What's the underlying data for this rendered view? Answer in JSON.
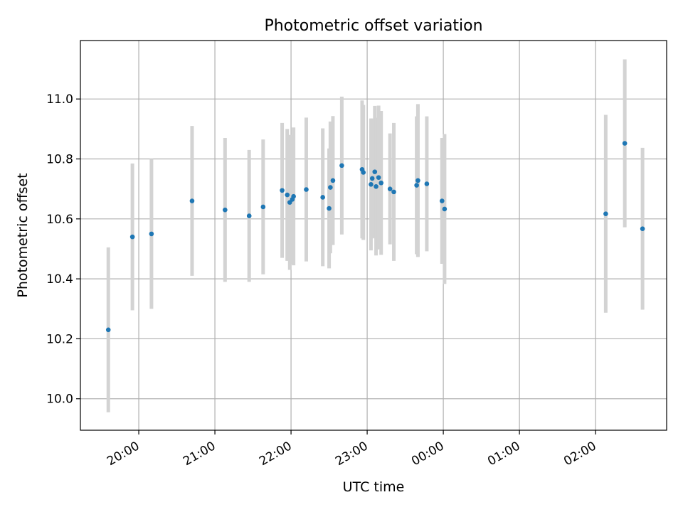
{
  "chart_data": {
    "type": "scatter",
    "title": "Photometric offset variation",
    "xlabel": "UTC time",
    "ylabel": "Photometric offset",
    "x_unit": "UTC hh:mm (values after midnight are the following day)",
    "xlim": [
      "19:14",
      "02:56"
    ],
    "ylim": [
      9.895,
      11.195
    ],
    "grid": true,
    "x_ticks": [
      "20:00",
      "21:00",
      "22:00",
      "23:00",
      "00:00",
      "01:00",
      "02:00"
    ],
    "y_ticks": [
      "10.0",
      "10.2",
      "10.4",
      "10.6",
      "10.8",
      "11.0"
    ],
    "colors": {
      "points": "#1f77b4",
      "errorbars": "#d3d3d3",
      "grid": "#b0b0b0"
    },
    "series": [
      {
        "points": [
          {
            "x": "19:36",
            "y": 10.23,
            "yerr": 0.275
          },
          {
            "x": "19:55",
            "y": 10.54,
            "yerr": 0.245
          },
          {
            "x": "20:10",
            "y": 10.55,
            "yerr": 0.25
          },
          {
            "x": "20:42",
            "y": 10.66,
            "yerr": 0.25
          },
          {
            "x": "21:08",
            "y": 10.63,
            "yerr": 0.24
          },
          {
            "x": "21:27",
            "y": 10.61,
            "yerr": 0.22
          },
          {
            "x": "21:38",
            "y": 10.64,
            "yerr": 0.225
          },
          {
            "x": "21:53",
            "y": 10.695,
            "yerr": 0.225
          },
          {
            "x": "21:57",
            "y": 10.68,
            "yerr": 0.22
          },
          {
            "x": "21:59",
            "y": 10.655,
            "yerr": 0.225
          },
          {
            "x": "22:01",
            "y": 10.665,
            "yerr": 0.215
          },
          {
            "x": "22:02",
            "y": 10.675,
            "yerr": 0.23
          },
          {
            "x": "22:12",
            "y": 10.698,
            "yerr": 0.24
          },
          {
            "x": "22:25",
            "y": 10.672,
            "yerr": 0.23
          },
          {
            "x": "22:30",
            "y": 10.635,
            "yerr": 0.2
          },
          {
            "x": "22:31",
            "y": 10.705,
            "yerr": 0.22
          },
          {
            "x": "22:33",
            "y": 10.728,
            "yerr": 0.215
          },
          {
            "x": "22:40",
            "y": 10.778,
            "yerr": 0.23
          },
          {
            "x": "22:56",
            "y": 10.765,
            "yerr": 0.23
          },
          {
            "x": "22:57",
            "y": 10.755,
            "yerr": 0.225
          },
          {
            "x": "23:03",
            "y": 10.715,
            "yerr": 0.22
          },
          {
            "x": "23:04",
            "y": 10.735,
            "yerr": 0.2
          },
          {
            "x": "23:06",
            "y": 10.757,
            "yerr": 0.22
          },
          {
            "x": "23:07",
            "y": 10.708,
            "yerr": 0.23
          },
          {
            "x": "23:09",
            "y": 10.738,
            "yerr": 0.24
          },
          {
            "x": "23:11",
            "y": 10.72,
            "yerr": 0.24
          },
          {
            "x": "23:18",
            "y": 10.7,
            "yerr": 0.185
          },
          {
            "x": "23:21",
            "y": 10.69,
            "yerr": 0.23
          },
          {
            "x": "23:39",
            "y": 10.712,
            "yerr": 0.23
          },
          {
            "x": "23:40",
            "y": 10.728,
            "yerr": 0.255
          },
          {
            "x": "23:47",
            "y": 10.717,
            "yerr": 0.225
          },
          {
            "x": "23:59",
            "y": 10.66,
            "yerr": 0.21
          },
          {
            "x": "00:01",
            "y": 10.633,
            "yerr": 0.25
          },
          {
            "x": "02:08",
            "y": 10.617,
            "yerr": 0.33
          },
          {
            "x": "02:23",
            "y": 10.852,
            "yerr": 0.28
          },
          {
            "x": "02:37",
            "y": 10.567,
            "yerr": 0.27
          }
        ]
      }
    ]
  }
}
